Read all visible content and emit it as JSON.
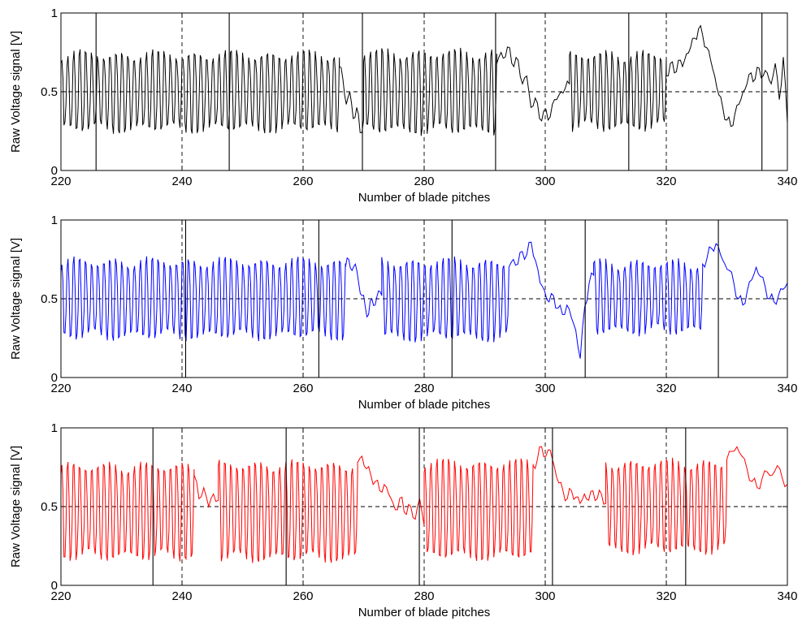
{
  "chart_data": [
    {
      "type": "line",
      "xlabel": "Number of blade pitches",
      "ylabel": "Raw Voltage signal [V]",
      "xlim": [
        220,
        340
      ],
      "ylim": [
        0,
        1
      ],
      "xticks": [
        "220",
        "240",
        "260",
        "280",
        "300",
        "320",
        "340"
      ],
      "yticks": [
        "0",
        "0.5",
        "1"
      ],
      "reference_line": 0.5,
      "dashed_verticals": [
        240,
        260,
        280,
        300,
        320
      ],
      "solid_verticals": [
        225.8,
        247.8,
        269.8,
        291.8,
        313.8,
        335.8
      ],
      "series": [
        {
          "color": "#000000",
          "segments": [
            {
              "x": [
                220,
                266
              ],
              "mode": "osc",
              "hi": 0.72,
              "lo": 0.28
            },
            {
              "x": [
                266,
                270
              ],
              "mode": "noise",
              "points": [
                0.66,
                0.58,
                0.42,
                0.5,
                0.33,
                0.4,
                0.24,
                0.32
              ]
            },
            {
              "x": [
                270,
                292
              ],
              "mode": "osc",
              "hi": 0.73,
              "lo": 0.27
            },
            {
              "x": [
                292,
                304
              ],
              "mode": "noise",
              "points": [
                0.68,
                0.75,
                0.72,
                0.78,
                0.66,
                0.7,
                0.55,
                0.6,
                0.4,
                0.46,
                0.33,
                0.38,
                0.32,
                0.42,
                0.45,
                0.5,
                0.52,
                0.55
              ]
            },
            {
              "x": [
                304,
                320
              ],
              "mode": "osc",
              "hi": 0.72,
              "lo": 0.29
            },
            {
              "x": [
                320,
                340
              ],
              "mode": "noise",
              "points": [
                0.6,
                0.68,
                0.62,
                0.7,
                0.66,
                0.74,
                0.78,
                0.84,
                0.9,
                0.86,
                0.78,
                0.7,
                0.6,
                0.48,
                0.4,
                0.32,
                0.28,
                0.36,
                0.42,
                0.5,
                0.55,
                0.62,
                0.58,
                0.65,
                0.6,
                0.62,
                0.55,
                0.68,
                0.45,
                0.72,
                0.3
              ]
            }
          ]
        }
      ]
    },
    {
      "type": "line",
      "xlabel": "Number of blade pitches",
      "ylabel": "Raw Voltage signal [V]",
      "xlim": [
        220,
        340
      ],
      "ylim": [
        0,
        1
      ],
      "xticks": [
        "220",
        "240",
        "260",
        "280",
        "300",
        "320",
        "340"
      ],
      "yticks": [
        "0",
        "0.5",
        "1"
      ],
      "reference_line": 0.5,
      "dashed_verticals": [
        240,
        260,
        280,
        300,
        320
      ],
      "solid_verticals": [
        240.6,
        262.6,
        284.6,
        306.6,
        328.6
      ],
      "series": [
        {
          "color": "#0000ff",
          "segments": [
            {
              "x": [
                220,
                267
              ],
              "mode": "osc",
              "hi": 0.72,
              "lo": 0.28
            },
            {
              "x": [
                267,
                273
              ],
              "mode": "noise",
              "points": [
                0.7,
                0.75,
                0.68,
                0.72,
                0.6,
                0.52,
                0.45,
                0.4,
                0.5,
                0.46,
                0.55,
                0.52
              ]
            },
            {
              "x": [
                273,
                294
              ],
              "mode": "osc",
              "hi": 0.72,
              "lo": 0.27
            },
            {
              "x": [
                294,
                308
              ],
              "mode": "noise",
              "points": [
                0.7,
                0.75,
                0.72,
                0.8,
                0.78,
                0.86,
                0.74,
                0.6,
                0.55,
                0.48,
                0.52,
                0.44,
                0.4,
                0.46,
                0.38,
                0.3,
                0.12,
                0.45,
                0.6,
                0.65
              ]
            },
            {
              "x": [
                308,
                326
              ],
              "mode": "osc",
              "hi": 0.71,
              "lo": 0.31
            },
            {
              "x": [
                326,
                340
              ],
              "mode": "noise",
              "points": [
                0.72,
                0.76,
                0.82,
                0.85,
                0.78,
                0.72,
                0.68,
                0.6,
                0.5,
                0.46,
                0.55,
                0.62,
                0.7,
                0.64,
                0.58,
                0.5,
                0.48,
                0.52,
                0.56,
                0.6
              ]
            }
          ]
        }
      ]
    },
    {
      "type": "line",
      "xlabel": "Number of blade pitches",
      "ylabel": "Raw Voltage signal [V]",
      "xlim": [
        220,
        340
      ],
      "ylim": [
        0,
        1
      ],
      "xticks": [
        "220",
        "240",
        "260",
        "280",
        "300",
        "320",
        "340"
      ],
      "yticks": [
        "0",
        "0.5",
        "1"
      ],
      "reference_line": 0.5,
      "dashed_verticals": [
        240,
        260,
        280,
        300,
        320
      ],
      "solid_verticals": [
        235.2,
        257.2,
        279.2,
        301.2,
        323.2
      ],
      "series": [
        {
          "color": "#ff0000",
          "segments": [
            {
              "x": [
                220,
                242
              ],
              "mode": "osc",
              "hi": 0.74,
              "lo": 0.2
            },
            {
              "x": [
                242,
                246
              ],
              "mode": "noise",
              "points": [
                0.7,
                0.55,
                0.62,
                0.5,
                0.58,
                0.54
              ]
            },
            {
              "x": [
                246,
                269
              ],
              "mode": "osc",
              "hi": 0.75,
              "lo": 0.19
            },
            {
              "x": [
                269,
                280
              ],
              "mode": "noise",
              "points": [
                0.78,
                0.82,
                0.74,
                0.7,
                0.66,
                0.6,
                0.64,
                0.58,
                0.52,
                0.48,
                0.56,
                0.45,
                0.5,
                0.42,
                0.55,
                0.38
              ]
            },
            {
              "x": [
                280,
                298
              ],
              "mode": "osc",
              "hi": 0.76,
              "lo": 0.2
            },
            {
              "x": [
                298,
                310
              ],
              "mode": "noise",
              "points": [
                0.76,
                0.8,
                0.88,
                0.82,
                0.86,
                0.75,
                0.65,
                0.6,
                0.55,
                0.6,
                0.56,
                0.52,
                0.58,
                0.54,
                0.6,
                0.55,
                0.58,
                0.52
              ]
            },
            {
              "x": [
                310,
                330
              ],
              "mode": "osc",
              "hi": 0.76,
              "lo": 0.24
            },
            {
              "x": [
                330,
                340
              ],
              "mode": "noise",
              "points": [
                0.8,
                0.85,
                0.88,
                0.82,
                0.74,
                0.66,
                0.62,
                0.68,
                0.72,
                0.7,
                0.76,
                0.68,
                0.64
              ]
            }
          ]
        }
      ]
    }
  ]
}
